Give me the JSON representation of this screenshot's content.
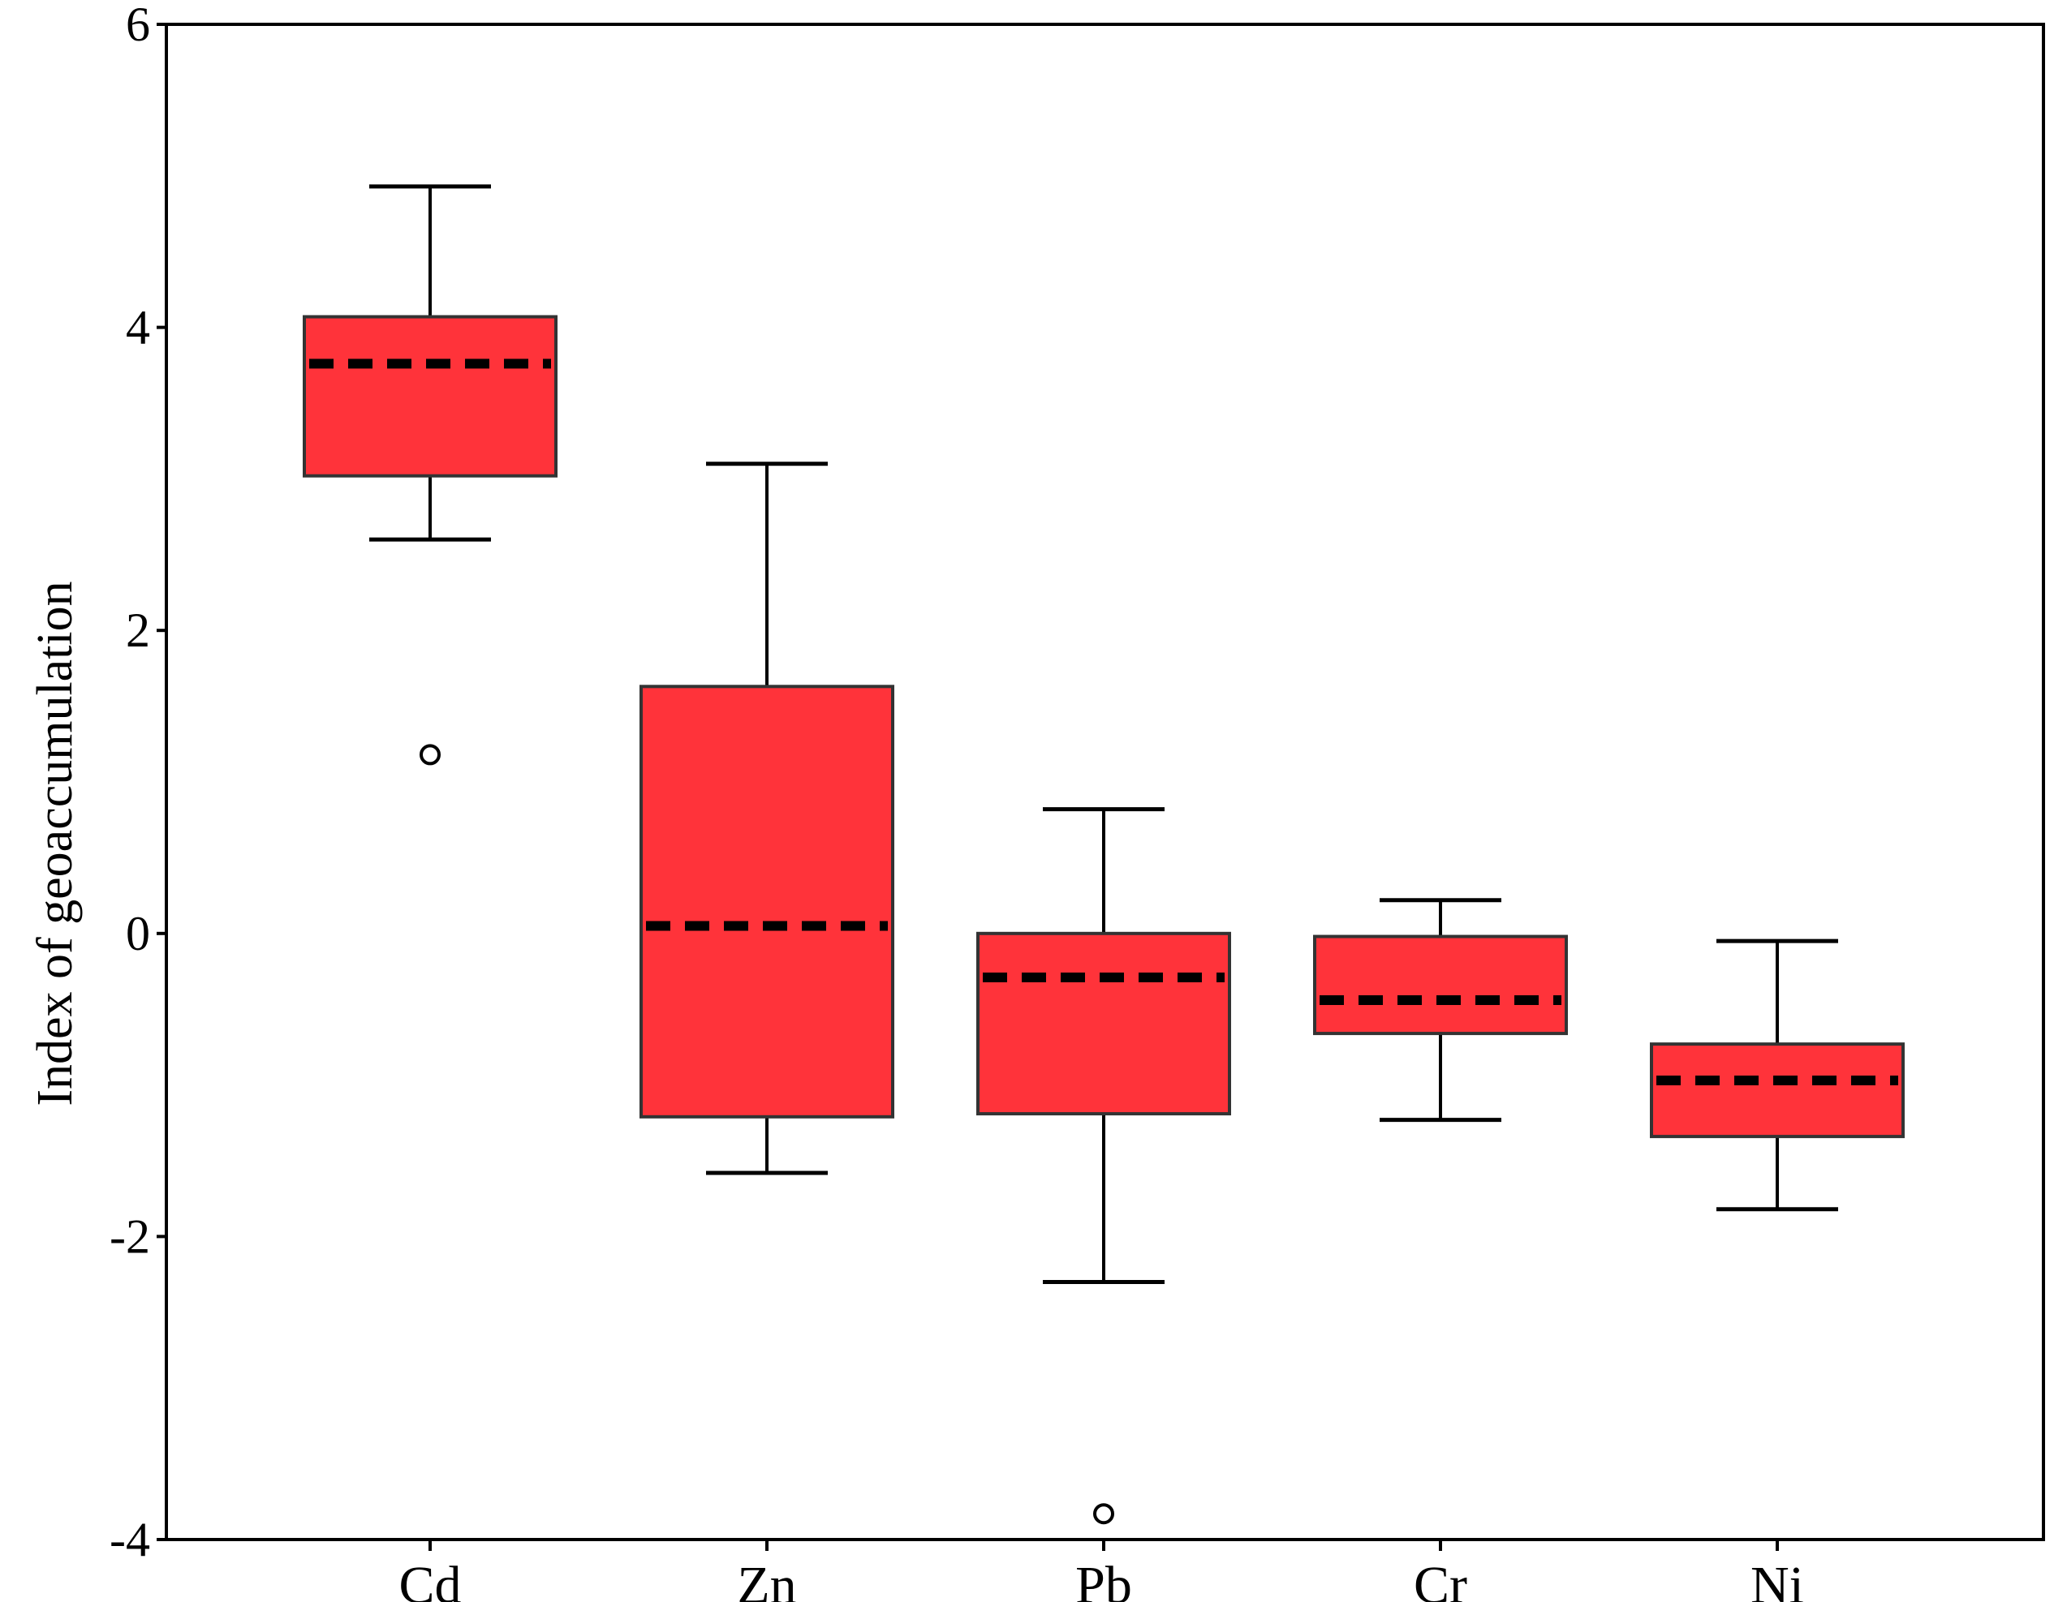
{
  "chart_data": {
    "type": "boxplot",
    "title": "",
    "xlabel": "",
    "ylabel": "Index of geoaccumulation",
    "ylim": [
      -4,
      6
    ],
    "yticks": [
      6,
      4,
      2,
      0,
      -2,
      -4
    ],
    "grid": false,
    "legend": "none",
    "categories": [
      "Cd",
      "Zn",
      "Pb",
      "Cr",
      "Ni"
    ],
    "box_color": "#FF333A",
    "series": [
      {
        "category": "Cd",
        "whisker_low": 2.6,
        "q1": 3.02,
        "median": 3.76,
        "q3": 4.07,
        "whisker_high": 4.93,
        "outliers": [
          1.18
        ]
      },
      {
        "category": "Zn",
        "whisker_low": -1.58,
        "q1": -1.21,
        "median": 0.05,
        "q3": 1.63,
        "whisker_high": 3.1,
        "outliers": []
      },
      {
        "category": "Pb",
        "whisker_low": -2.3,
        "q1": -1.19,
        "median": -0.29,
        "q3": 0.0,
        "whisker_high": 0.82,
        "outliers": [
          -3.83
        ]
      },
      {
        "category": "Cr",
        "whisker_low": -1.23,
        "q1": -0.66,
        "median": -0.44,
        "q3": -0.02,
        "whisker_high": 0.22,
        "outliers": []
      },
      {
        "category": "Ni",
        "whisker_low": -1.82,
        "q1": -1.34,
        "median": -0.97,
        "q3": -0.73,
        "whisker_high": -0.05,
        "outliers": []
      }
    ]
  }
}
